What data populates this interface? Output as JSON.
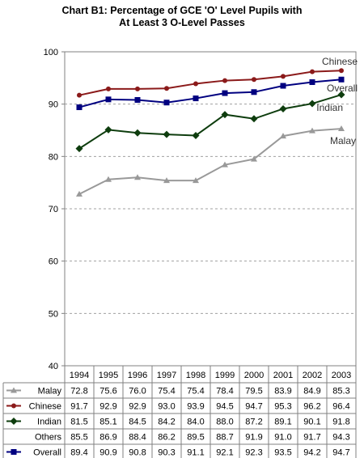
{
  "chart_data": {
    "type": "line",
    "title_lines": [
      "Chart B1: Percentage of GCE 'O' Level Pupils with",
      "At Least 3 O-Level Passes"
    ],
    "categories": [
      "1994",
      "1995",
      "1996",
      "1997",
      "1998",
      "1999",
      "2000",
      "2001",
      "2002",
      "2003"
    ],
    "ylim": [
      40,
      100
    ],
    "yticks": [
      "40",
      "50",
      "60",
      "70",
      "80",
      "90",
      "100"
    ],
    "grid": true,
    "series": [
      {
        "name": "Malay",
        "color": "#999999",
        "marker": "triangle",
        "plotted": true,
        "values": [
          72.8,
          75.6,
          76.0,
          75.4,
          75.4,
          78.4,
          79.5,
          83.9,
          84.9,
          85.3
        ],
        "labels": [
          "72.8",
          "75.6",
          "76.0",
          "75.4",
          "75.4",
          "78.4",
          "79.5",
          "83.9",
          "84.9",
          "85.3"
        ]
      },
      {
        "name": "Chinese",
        "color": "#8b1a1a",
        "marker": "circle",
        "plotted": true,
        "values": [
          91.7,
          92.9,
          92.9,
          93.0,
          93.9,
          94.5,
          94.7,
          95.3,
          96.2,
          96.4
        ],
        "labels": [
          "91.7",
          "92.9",
          "92.9",
          "93.0",
          "93.9",
          "94.5",
          "94.7",
          "95.3",
          "96.2",
          "96.4"
        ]
      },
      {
        "name": "Indian",
        "color": "#0e3d0e",
        "marker": "diamond",
        "plotted": true,
        "values": [
          81.5,
          85.1,
          84.5,
          84.2,
          84.0,
          88.0,
          87.2,
          89.1,
          90.1,
          91.8
        ],
        "labels": [
          "81.5",
          "85.1",
          "84.5",
          "84.2",
          "84.0",
          "88.0",
          "87.2",
          "89.1",
          "90.1",
          "91.8"
        ]
      },
      {
        "name": "Others",
        "color": "#000000",
        "marker": "none",
        "plotted": false,
        "values": [
          85.5,
          86.9,
          88.4,
          86.2,
          89.5,
          88.7,
          91.9,
          91.0,
          91.7,
          94.3
        ],
        "labels": [
          "85.5",
          "86.9",
          "88.4",
          "86.2",
          "89.5",
          "88.7",
          "91.9",
          "91.0",
          "91.7",
          "94.3"
        ]
      },
      {
        "name": "Overall",
        "color": "#000080",
        "marker": "square",
        "plotted": true,
        "values": [
          89.4,
          90.9,
          90.8,
          90.3,
          91.1,
          92.1,
          92.3,
          93.5,
          94.2,
          94.7
        ],
        "labels": [
          "89.4",
          "90.9",
          "90.8",
          "90.3",
          "91.1",
          "92.1",
          "92.3",
          "93.5",
          "94.2",
          "94.7"
        ]
      }
    ],
    "end_labels": [
      "Chinese",
      "Overall",
      "Indian",
      "Malay"
    ]
  }
}
